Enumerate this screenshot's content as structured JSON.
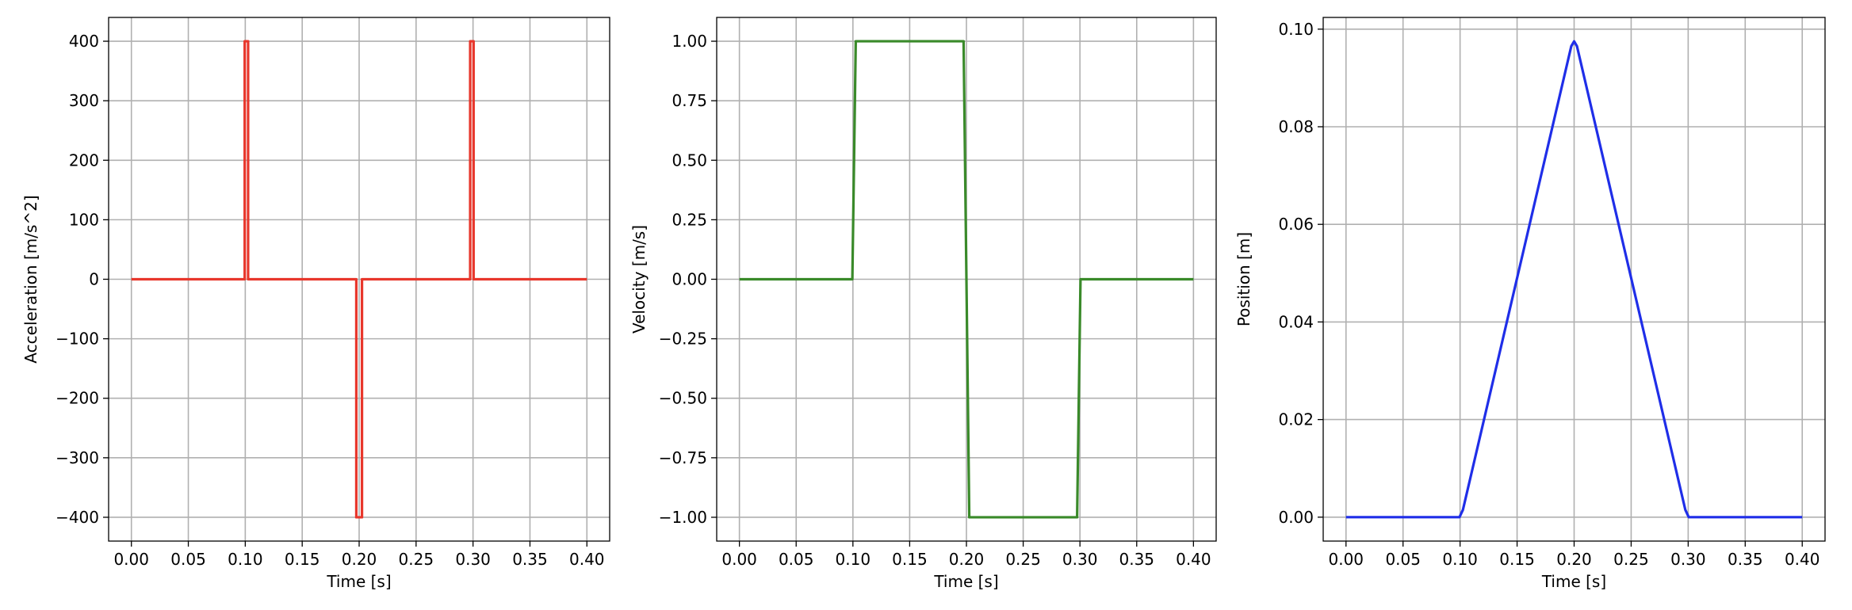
{
  "chart_data": [
    {
      "type": "line",
      "title": "",
      "xlabel": "Time [s]",
      "ylabel": "Acceleration [m/s^2]",
      "xlim": [
        -0.02,
        0.42
      ],
      "ylim": [
        -440,
        440
      ],
      "xticks": [
        0.0,
        0.05,
        0.1,
        0.15,
        0.2,
        0.25,
        0.3,
        0.35,
        0.4
      ],
      "xtick_labels": [
        "0.00",
        "0.05",
        "0.10",
        "0.15",
        "0.20",
        "0.25",
        "0.30",
        "0.35",
        "0.40"
      ],
      "yticks": [
        -400,
        -300,
        -200,
        -100,
        0,
        100,
        200,
        300,
        400
      ],
      "ytick_labels": [
        "−400",
        "−300",
        "−200",
        "−100",
        "0",
        "100",
        "200",
        "300",
        "400"
      ],
      "grid": true,
      "color": "#e8372c",
      "series": [
        {
          "x": [
            0.0,
            0.0995,
            0.0995,
            0.1025,
            0.1025,
            0.1975,
            0.1975,
            0.2025,
            0.2025,
            0.2975,
            0.2975,
            0.3005,
            0.3005,
            0.4
          ],
          "y": [
            0,
            0,
            400,
            400,
            0,
            0,
            -400,
            -400,
            0,
            0,
            400,
            400,
            0,
            0
          ]
        }
      ]
    },
    {
      "type": "line",
      "title": "",
      "xlabel": "Time [s]",
      "ylabel": "Velocity [m/s]",
      "xlim": [
        -0.02,
        0.42
      ],
      "ylim": [
        -1.1,
        1.1
      ],
      "xticks": [
        0.0,
        0.05,
        0.1,
        0.15,
        0.2,
        0.25,
        0.3,
        0.35,
        0.4
      ],
      "xtick_labels": [
        "0.00",
        "0.05",
        "0.10",
        "0.15",
        "0.20",
        "0.25",
        "0.30",
        "0.35",
        "0.40"
      ],
      "yticks": [
        -1.0,
        -0.75,
        -0.5,
        -0.25,
        0.0,
        0.25,
        0.5,
        0.75,
        1.0
      ],
      "ytick_labels": [
        "−1.00",
        "−0.75",
        "−0.50",
        "−0.25",
        "0.00",
        "0.25",
        "0.50",
        "0.75",
        "1.00"
      ],
      "grid": true,
      "color": "#3a8a2a",
      "series": [
        {
          "x": [
            0.0,
            0.0995,
            0.1025,
            0.1975,
            0.2025,
            0.2975,
            0.3005,
            0.4
          ],
          "y": [
            0,
            0,
            1,
            1,
            -1,
            -1,
            0,
            0
          ]
        }
      ]
    },
    {
      "type": "line",
      "title": "",
      "xlabel": "Time [s]",
      "ylabel": "Position [m]",
      "xlim": [
        -0.02,
        0.42
      ],
      "ylim": [
        -0.0049,
        0.1024
      ],
      "xticks": [
        0.0,
        0.05,
        0.1,
        0.15,
        0.2,
        0.25,
        0.3,
        0.35,
        0.4
      ],
      "xtick_labels": [
        "0.00",
        "0.05",
        "0.10",
        "0.15",
        "0.20",
        "0.25",
        "0.30",
        "0.35",
        "0.40"
      ],
      "yticks": [
        0.0,
        0.02,
        0.04,
        0.06,
        0.08,
        0.1
      ],
      "ytick_labels": [
        "0.00",
        "0.02",
        "0.04",
        "0.06",
        "0.08",
        "0.10"
      ],
      "grid": true,
      "color": "#1f2ee8",
      "series": [
        {
          "x": [
            0.0,
            0.0995,
            0.1025,
            0.1975,
            0.2,
            0.2025,
            0.2975,
            0.3005,
            0.4
          ],
          "y": [
            0,
            0,
            0.0015,
            0.0965,
            0.0975,
            0.0965,
            0.0015,
            0,
            0
          ]
        }
      ]
    }
  ]
}
